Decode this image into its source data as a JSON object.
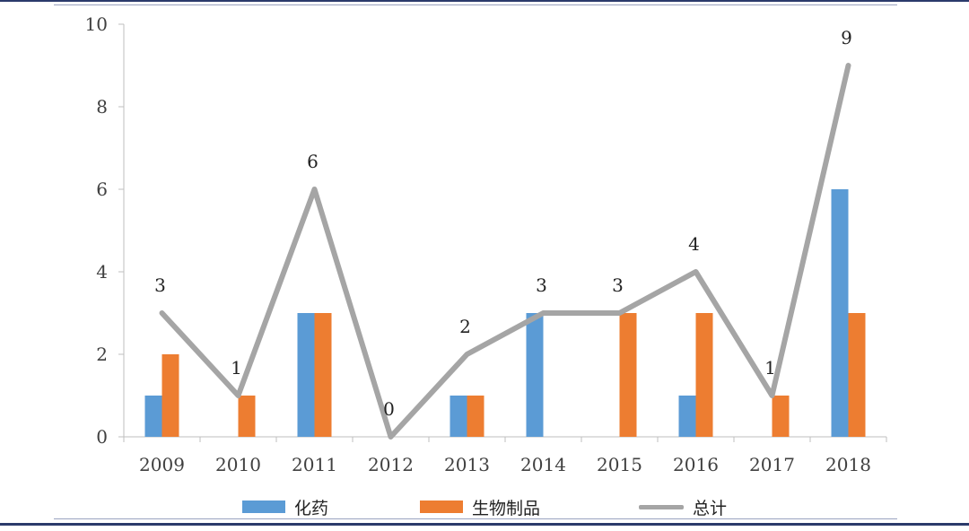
{
  "chart_data": {
    "type": "bar",
    "categories": [
      "2009",
      "2010",
      "2011",
      "2012",
      "2013",
      "2014",
      "2015",
      "2016",
      "2017",
      "2018"
    ],
    "series": [
      {
        "name": "化药",
        "type": "bar",
        "color": "#5b9bd5",
        "values": [
          1,
          0,
          3,
          0,
          1,
          3,
          0,
          1,
          0,
          6
        ]
      },
      {
        "name": "生物制品",
        "type": "bar",
        "color": "#ed7d31",
        "values": [
          2,
          1,
          3,
          0,
          1,
          0,
          3,
          3,
          1,
          3
        ]
      },
      {
        "name": "总计",
        "type": "line",
        "color": "#a5a5a5",
        "values": [
          3,
          1,
          6,
          0,
          2,
          3,
          3,
          4,
          1,
          9
        ],
        "data_labels": [
          "3",
          "1",
          "6",
          "0",
          "2",
          "3",
          "3",
          "4",
          "1",
          "9"
        ]
      }
    ],
    "ylim": [
      0,
      10
    ],
    "yticks": [
      "0",
      "2",
      "4",
      "6",
      "8",
      "10"
    ],
    "grid": false,
    "legend_position": "bottom"
  }
}
